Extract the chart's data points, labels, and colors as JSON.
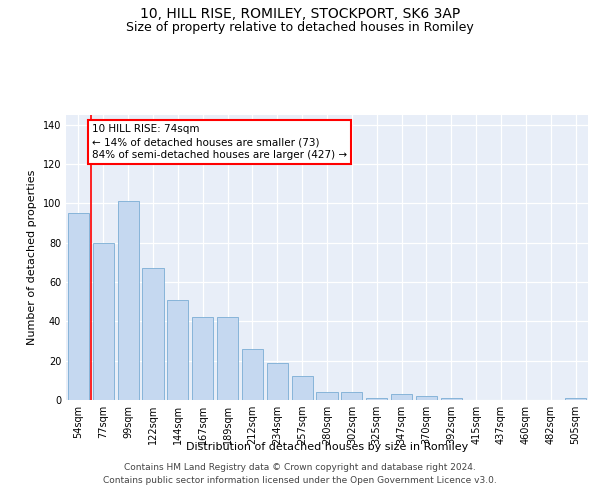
{
  "title_line1": "10, HILL RISE, ROMILEY, STOCKPORT, SK6 3AP",
  "title_line2": "Size of property relative to detached houses in Romiley",
  "xlabel": "Distribution of detached houses by size in Romiley",
  "ylabel": "Number of detached properties",
  "categories": [
    "54sqm",
    "77sqm",
    "99sqm",
    "122sqm",
    "144sqm",
    "167sqm",
    "189sqm",
    "212sqm",
    "234sqm",
    "257sqm",
    "280sqm",
    "302sqm",
    "325sqm",
    "347sqm",
    "370sqm",
    "392sqm",
    "415sqm",
    "437sqm",
    "460sqm",
    "482sqm",
    "505sqm"
  ],
  "values": [
    95,
    80,
    101,
    67,
    51,
    42,
    42,
    26,
    19,
    12,
    4,
    4,
    1,
    3,
    2,
    1,
    0,
    0,
    0,
    0,
    1
  ],
  "bar_color": "#c5d8f0",
  "bar_edge_color": "#7aadd4",
  "plot_bg_color": "#e8eef8",
  "grid_color": "#ffffff",
  "ylim": [
    0,
    145
  ],
  "yticks": [
    0,
    20,
    40,
    60,
    80,
    100,
    120,
    140
  ],
  "red_line_x": 0.5,
  "annotation_text": "10 HILL RISE: 74sqm\n← 14% of detached houses are smaller (73)\n84% of semi-detached houses are larger (427) →",
  "footer_line1": "Contains HM Land Registry data © Crown copyright and database right 2024.",
  "footer_line2": "Contains public sector information licensed under the Open Government Licence v3.0.",
  "title_fontsize": 10,
  "subtitle_fontsize": 9,
  "label_fontsize": 8,
  "tick_fontsize": 7,
  "annotation_fontsize": 7.5,
  "footer_fontsize": 6.5
}
